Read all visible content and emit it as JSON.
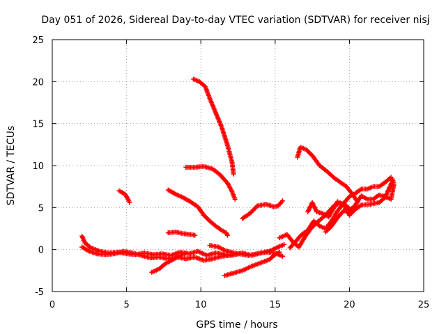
{
  "chart_data": {
    "type": "scatter",
    "title": "Day 051 of 2026, Sidereal Day-to-day VTEC variation (SDTVAR) for receiver nisj",
    "xlabel": "GPS time / hours",
    "ylabel": "SDTVAR / TECUs",
    "xlim": [
      0,
      25
    ],
    "ylim": [
      -5,
      25
    ],
    "xticks": [
      "0",
      "5",
      "10",
      "15",
      "20",
      "25"
    ],
    "yticks": [
      "-5",
      "0",
      "5",
      "10",
      "15",
      "20",
      "25"
    ],
    "grid": true,
    "marker": "plus",
    "color": "#ff0000",
    "series": [
      {
        "points": [
          [
            9.5,
            20.3
          ],
          [
            9.9,
            20.0
          ],
          [
            10.3,
            19.4
          ],
          [
            10.6,
            18.0
          ],
          [
            11.0,
            16.3
          ],
          [
            11.4,
            14.6
          ],
          [
            11.8,
            12.4
          ],
          [
            12.1,
            10.4
          ],
          [
            12.2,
            9.0
          ]
        ]
      },
      {
        "points": [
          [
            9.0,
            9.8
          ],
          [
            9.6,
            9.8
          ],
          [
            10.2,
            9.9
          ],
          [
            10.8,
            9.6
          ],
          [
            11.3,
            8.9
          ],
          [
            11.8,
            7.9
          ],
          [
            12.1,
            6.9
          ],
          [
            12.3,
            6.0
          ]
        ]
      },
      {
        "points": [
          [
            16.5,
            11.0
          ],
          [
            16.7,
            12.2
          ],
          [
            17.1,
            11.9
          ],
          [
            17.5,
            11.2
          ],
          [
            18.0,
            10.0
          ],
          [
            18.5,
            9.3
          ],
          [
            19.0,
            8.5
          ],
          [
            19.4,
            8.0
          ],
          [
            19.8,
            7.5
          ],
          [
            20.2,
            6.6
          ],
          [
            20.5,
            5.8
          ]
        ]
      },
      {
        "points": [
          [
            7.8,
            7.1
          ],
          [
            8.3,
            6.6
          ],
          [
            8.8,
            6.2
          ],
          [
            9.3,
            5.7
          ],
          [
            9.8,
            5.1
          ],
          [
            10.2,
            4.1
          ],
          [
            10.6,
            3.4
          ],
          [
            11.0,
            2.8
          ],
          [
            11.4,
            2.3
          ],
          [
            11.7,
            2.0
          ],
          [
            11.8,
            1.7
          ]
        ]
      },
      {
        "points": [
          [
            4.5,
            7.0
          ],
          [
            4.9,
            6.6
          ],
          [
            5.1,
            6.0
          ],
          [
            5.2,
            5.6
          ]
        ]
      },
      {
        "points": [
          [
            12.8,
            3.7
          ],
          [
            13.3,
            4.3
          ],
          [
            13.8,
            5.2
          ],
          [
            14.4,
            5.4
          ],
          [
            14.9,
            5.1
          ],
          [
            15.2,
            5.2
          ],
          [
            15.5,
            5.8
          ]
        ]
      },
      {
        "points": [
          [
            7.8,
            2.0
          ],
          [
            8.3,
            2.1
          ],
          [
            8.8,
            1.9
          ],
          [
            9.3,
            1.8
          ],
          [
            9.6,
            1.7
          ]
        ]
      },
      {
        "points": [
          [
            2.0,
            1.6
          ],
          [
            2.2,
            0.8
          ],
          [
            2.6,
            0.2
          ],
          [
            3.2,
            -0.2
          ],
          [
            3.8,
            -0.4
          ],
          [
            4.4,
            -0.3
          ],
          [
            5.0,
            -0.5
          ],
          [
            5.6,
            -0.6
          ],
          [
            6.2,
            -0.4
          ],
          [
            6.8,
            -0.6
          ],
          [
            7.4,
            -0.5
          ],
          [
            8.0,
            -0.7
          ],
          [
            8.6,
            -0.3
          ],
          [
            9.2,
            -0.5
          ],
          [
            9.8,
            -0.2
          ],
          [
            10.4,
            -0.7
          ],
          [
            11.0,
            -0.4
          ],
          [
            11.6,
            -0.6
          ],
          [
            12.2,
            -0.6
          ],
          [
            12.8,
            -0.4
          ],
          [
            13.4,
            -0.7
          ],
          [
            14.0,
            -0.4
          ],
          [
            14.6,
            -0.2
          ],
          [
            15.2,
            0.3
          ],
          [
            15.6,
            0.6
          ]
        ]
      },
      {
        "points": [
          [
            2.0,
            0.3
          ],
          [
            2.5,
            -0.2
          ],
          [
            3.0,
            -0.5
          ],
          [
            3.6,
            -0.6
          ],
          [
            4.2,
            -0.5
          ],
          [
            4.8,
            -0.2
          ],
          [
            5.4,
            -0.4
          ],
          [
            6.0,
            -0.7
          ],
          [
            6.6,
            -1.0
          ],
          [
            7.2,
            -0.9
          ],
          [
            7.8,
            -1.1
          ],
          [
            8.4,
            -0.9
          ],
          [
            9.0,
            -1.1
          ],
          [
            9.6,
            -0.9
          ],
          [
            10.2,
            -1.3
          ],
          [
            10.8,
            -1.1
          ],
          [
            11.4,
            -0.8
          ],
          [
            12.0,
            -0.7
          ],
          [
            12.6,
            -0.5
          ],
          [
            13.2,
            -0.7
          ],
          [
            13.8,
            -0.5
          ],
          [
            14.4,
            -0.3
          ],
          [
            15.0,
            -0.4
          ],
          [
            15.5,
            -0.8
          ]
        ]
      },
      {
        "points": [
          [
            6.7,
            -2.7
          ],
          [
            7.2,
            -2.3
          ],
          [
            7.6,
            -1.7
          ],
          [
            8.0,
            -1.3
          ],
          [
            8.5,
            -0.8
          ],
          [
            9.0,
            -0.4
          ]
        ]
      },
      {
        "points": [
          [
            11.6,
            -3.1
          ],
          [
            12.2,
            -2.8
          ],
          [
            12.8,
            -2.5
          ],
          [
            13.4,
            -2.0
          ],
          [
            14.0,
            -1.6
          ],
          [
            14.6,
            -1.2
          ],
          [
            15.0,
            -0.6
          ],
          [
            15.3,
            -0.3
          ]
        ]
      },
      {
        "points": [
          [
            10.6,
            0.5
          ],
          [
            11.2,
            0.3
          ],
          [
            11.6,
            -0.1
          ],
          [
            12.0,
            -0.3
          ],
          [
            12.5,
            -0.5
          ]
        ]
      },
      {
        "points": [
          [
            15.3,
            1.4
          ],
          [
            15.8,
            1.8
          ],
          [
            16.2,
            0.9
          ],
          [
            16.6,
            0.3
          ],
          [
            17.0,
            1.5
          ],
          [
            17.4,
            2.5
          ],
          [
            17.8,
            3.2
          ],
          [
            18.2,
            3.8
          ],
          [
            18.6,
            4.5
          ],
          [
            19.0,
            5.3
          ],
          [
            19.4,
            5.5
          ],
          [
            19.8,
            5.2
          ],
          [
            20.2,
            4.6
          ]
        ]
      },
      {
        "points": [
          [
            16.0,
            0.2
          ],
          [
            16.4,
            1.0
          ],
          [
            16.8,
            1.8
          ],
          [
            17.2,
            2.3
          ],
          [
            17.6,
            3.4
          ],
          [
            18.0,
            2.8
          ],
          [
            18.4,
            2.5
          ],
          [
            18.8,
            3.4
          ],
          [
            19.2,
            4.6
          ],
          [
            19.6,
            5.5
          ],
          [
            20.0,
            6.3
          ],
          [
            20.4,
            6.7
          ],
          [
            20.8,
            7.2
          ],
          [
            21.2,
            7.2
          ],
          [
            21.6,
            7.5
          ],
          [
            22.0,
            7.5
          ],
          [
            22.4,
            8.0
          ],
          [
            22.8,
            8.6
          ]
        ]
      },
      {
        "points": [
          [
            18.4,
            2.1
          ],
          [
            18.8,
            2.8
          ],
          [
            19.2,
            3.8
          ],
          [
            19.6,
            4.6
          ],
          [
            20.0,
            4.6
          ],
          [
            20.4,
            5.3
          ],
          [
            20.8,
            6.4
          ],
          [
            21.2,
            6.0
          ],
          [
            21.6,
            6.0
          ],
          [
            22.0,
            6.5
          ],
          [
            22.4,
            6.3
          ],
          [
            22.8,
            6.0
          ],
          [
            23.0,
            7.8
          ],
          [
            22.9,
            8.4
          ]
        ]
      },
      {
        "points": [
          [
            17.2,
            4.5
          ],
          [
            17.5,
            5.6
          ],
          [
            17.8,
            4.5
          ],
          [
            18.2,
            4.3
          ],
          [
            18.6,
            3.9
          ],
          [
            19.2,
            5.7
          ],
          [
            19.6,
            5.4
          ],
          [
            20.0,
            4.1
          ],
          [
            20.4,
            4.8
          ],
          [
            20.8,
            5.3
          ],
          [
            21.4,
            5.4
          ],
          [
            22.0,
            5.6
          ],
          [
            22.4,
            6.2
          ],
          [
            22.9,
            8.2
          ]
        ]
      }
    ]
  }
}
